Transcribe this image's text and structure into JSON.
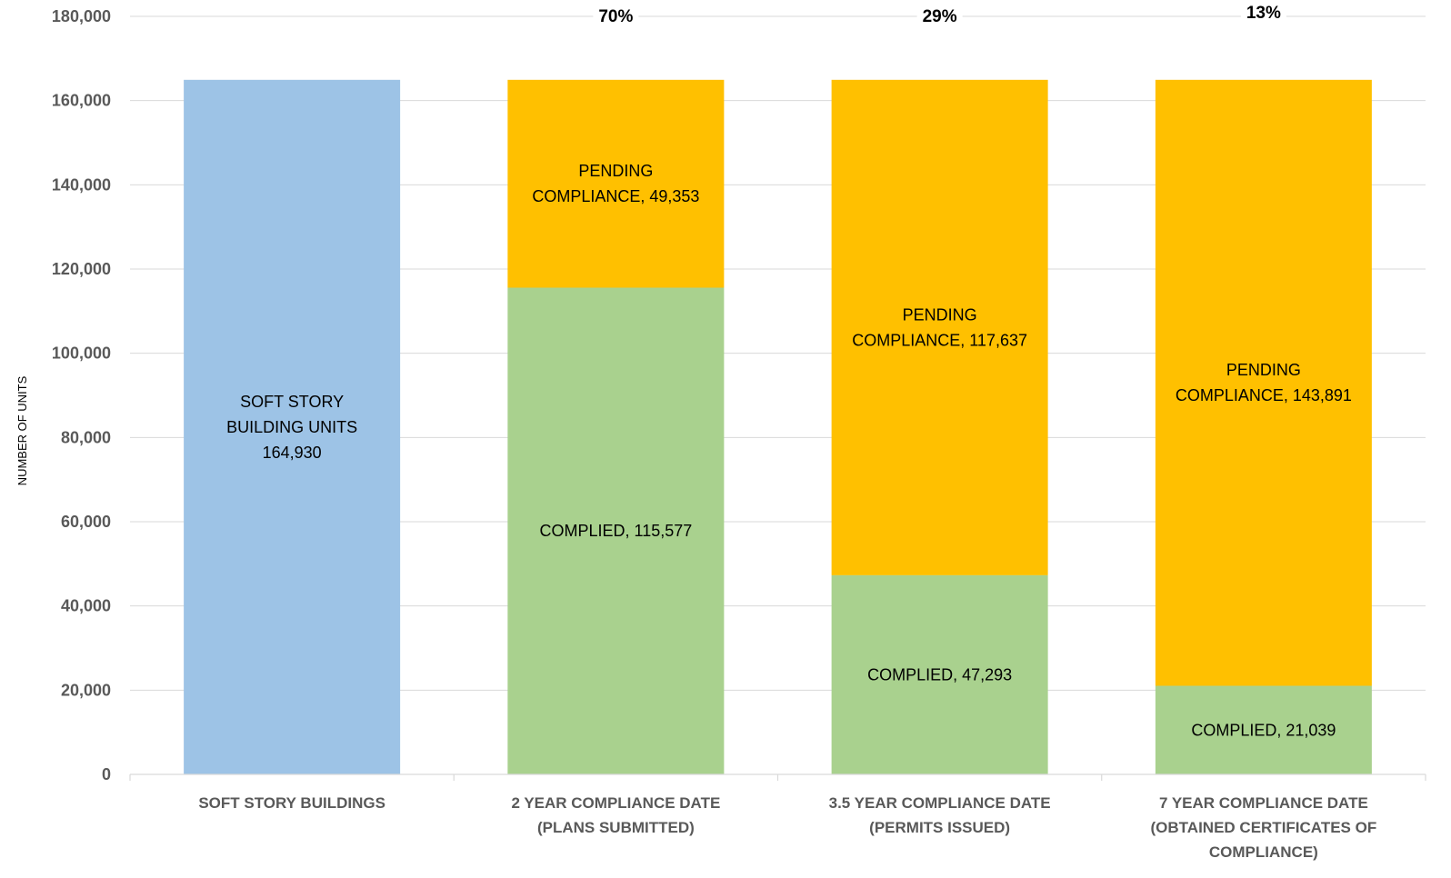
{
  "chart_data": {
    "type": "bar",
    "stacked": true,
    "ylabel": "NUMBER OF UNITS",
    "ylim": [
      0,
      180000
    ],
    "ytick_labels": [
      "0",
      "20,000",
      "40,000",
      "60,000",
      "80,000",
      "100,000",
      "120,000",
      "140,000",
      "160,000",
      "180,000"
    ],
    "grid": true,
    "categories": [
      [
        "SOFT STORY BUILDINGS"
      ],
      [
        "2 YEAR COMPLIANCE DATE",
        "(PLANS SUBMITTED)"
      ],
      [
        "3.5 YEAR COMPLIANCE DATE",
        "(PERMITS ISSUED)"
      ],
      [
        "7 YEAR COMPLIANCE DATE",
        "(OBTAINED CERTIFICATES OF",
        "COMPLIANCE)"
      ]
    ],
    "colors": {
      "total": "#9dc3e6",
      "complied": "#a9d18e",
      "pending": "#ffc000",
      "grid": "#d9d9d9",
      "tick_text": "#595959"
    },
    "series": [
      {
        "key": "total",
        "values": [
          164930,
          0,
          0,
          0
        ],
        "labels": [
          [
            "SOFT STORY",
            "BUILDING UNITS",
            "164,930"
          ],
          [],
          [],
          []
        ]
      },
      {
        "key": "complied",
        "values": [
          0,
          115577,
          47293,
          21039
        ],
        "labels": [
          [],
          [
            "COMPLIED, 115,577"
          ],
          [
            "COMPLIED, 47,293"
          ],
          [
            "COMPLIED, 21,039"
          ]
        ]
      },
      {
        "key": "pending",
        "values": [
          0,
          49353,
          117637,
          143891
        ],
        "labels": [
          [],
          [
            "PENDING",
            "COMPLIANCE, 49,353"
          ],
          [
            "PENDING",
            "COMPLIANCE, 117,637"
          ],
          [
            "PENDING",
            "COMPLIANCE, 143,891"
          ]
        ]
      }
    ],
    "percent_labels": [
      "",
      "70%",
      "29%",
      "13%"
    ]
  }
}
